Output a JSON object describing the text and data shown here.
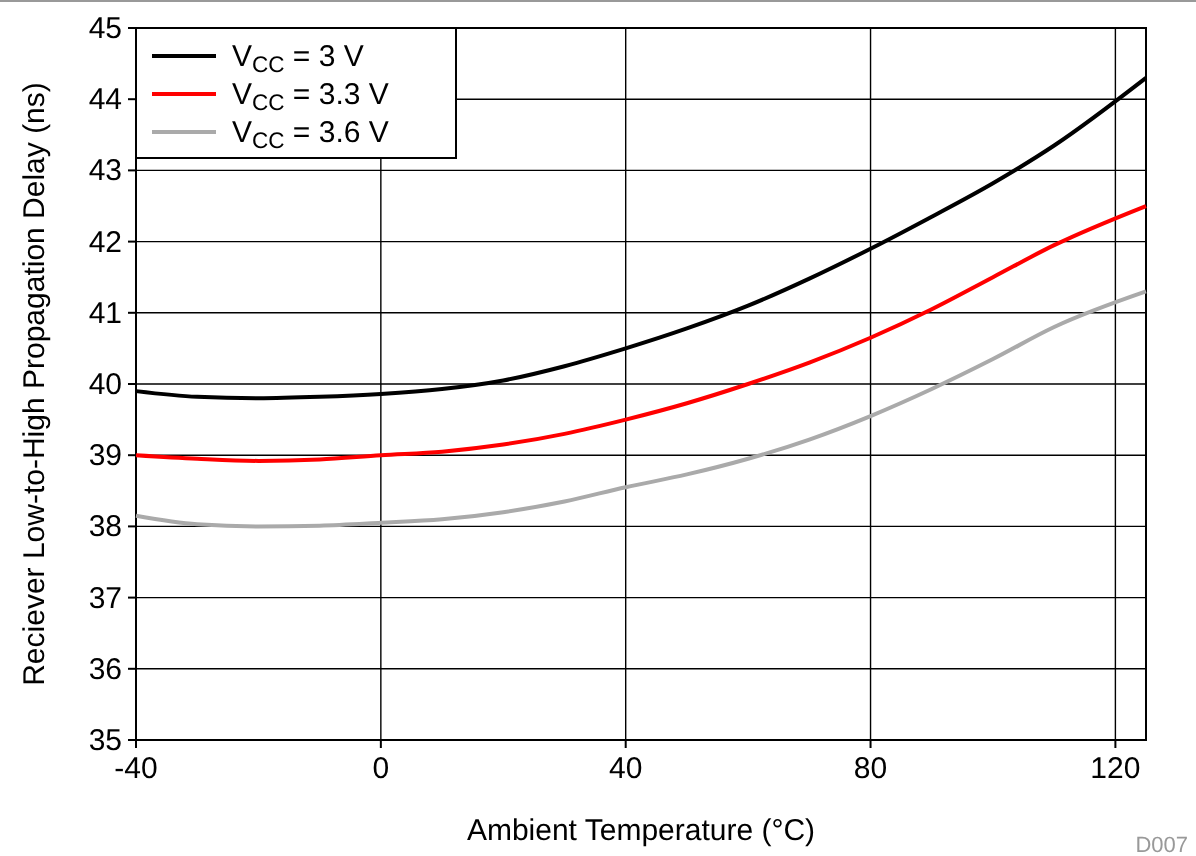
{
  "chart_data": {
    "type": "line",
    "xlabel": "Ambient Temperature (°C)",
    "ylabel": "Reciever Low-to-High Propagation Delay (ns)",
    "x": [
      -40,
      -30,
      -20,
      -10,
      0,
      10,
      20,
      30,
      40,
      50,
      60,
      70,
      80,
      90,
      100,
      110,
      125
    ],
    "series": [
      {
        "name": "V$_{CC}$ = 3 V",
        "color": "#000000",
        "values": [
          39.9,
          39.82,
          39.8,
          39.82,
          39.86,
          39.93,
          40.05,
          40.25,
          40.5,
          40.78,
          41.1,
          41.48,
          41.9,
          42.35,
          42.82,
          43.35,
          44.3
        ]
      },
      {
        "name": "V$_{CC}$ = 3.3 V",
        "color": "#ff0000",
        "values": [
          39.0,
          38.95,
          38.92,
          38.94,
          39.0,
          39.05,
          39.15,
          39.3,
          39.5,
          39.73,
          40.0,
          40.3,
          40.65,
          41.05,
          41.5,
          41.95,
          42.5
        ]
      },
      {
        "name": "V$_{CC}$ = 3.6 V",
        "color": "#aaaaaa",
        "values": [
          38.15,
          38.03,
          38.0,
          38.01,
          38.05,
          38.1,
          38.2,
          38.35,
          38.55,
          38.73,
          38.95,
          39.22,
          39.55,
          39.93,
          40.35,
          40.8,
          41.3
        ]
      }
    ],
    "xlim": [
      -40,
      125
    ],
    "xticks": [
      -40,
      0,
      40,
      80,
      120
    ],
    "ylim": [
      35,
      45
    ],
    "yticks": [
      35,
      36,
      37,
      38,
      39,
      40,
      41,
      42,
      43,
      44,
      45
    ],
    "grid": true,
    "legend": "top left",
    "line_style": "solid",
    "marker": "none",
    "annotations": [
      "D007"
    ]
  }
}
